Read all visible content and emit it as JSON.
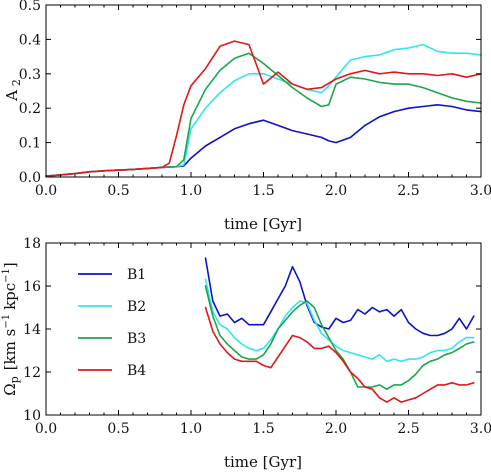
{
  "colors": {
    "B1": "#0a14c8",
    "B2": "#2ee6f0",
    "B3": "#1aa64a",
    "B4": "#e01818"
  },
  "chart_data": [
    {
      "type": "line",
      "xlabel": "time [Gyr]",
      "ylabel": "A",
      "ylabel_sub": "2",
      "xlim": [
        0.0,
        3.0
      ],
      "ylim": [
        0.0,
        0.5
      ],
      "xticks": [
        0.0,
        0.5,
        1.0,
        1.5,
        2.0,
        2.5,
        3.0
      ],
      "xtick_labels": [
        "0.0",
        "0.5",
        "1.0",
        "1.5",
        "2.0",
        "2.5",
        "3.0"
      ],
      "yticks": [
        0.0,
        0.1,
        0.2,
        0.3,
        0.4,
        0.5
      ],
      "ytick_labels": [
        "0.0",
        "0.1",
        "0.2",
        "0.3",
        "0.4",
        "0.5"
      ],
      "grid": false,
      "series": [
        {
          "name": "B1",
          "color_key": "B1",
          "x": [
            0.0,
            0.1,
            0.2,
            0.3,
            0.4,
            0.5,
            0.6,
            0.7,
            0.8,
            0.9,
            0.95,
            1.0,
            1.1,
            1.2,
            1.3,
            1.4,
            1.5,
            1.6,
            1.7,
            1.8,
            1.9,
            1.95,
            2.0,
            2.1,
            2.2,
            2.3,
            2.4,
            2.5,
            2.6,
            2.7,
            2.8,
            2.9,
            3.0
          ],
          "y": [
            0.003,
            0.006,
            0.01,
            0.015,
            0.018,
            0.02,
            0.022,
            0.025,
            0.028,
            0.03,
            0.032,
            0.055,
            0.09,
            0.115,
            0.14,
            0.155,
            0.165,
            0.15,
            0.135,
            0.125,
            0.115,
            0.105,
            0.1,
            0.115,
            0.15,
            0.175,
            0.19,
            0.2,
            0.205,
            0.21,
            0.205,
            0.195,
            0.19
          ]
        },
        {
          "name": "B2",
          "color_key": "B2",
          "x": [
            0.0,
            0.1,
            0.2,
            0.3,
            0.4,
            0.5,
            0.6,
            0.7,
            0.8,
            0.9,
            0.95,
            1.0,
            1.1,
            1.2,
            1.3,
            1.4,
            1.5,
            1.6,
            1.7,
            1.8,
            1.9,
            1.95,
            2.0,
            2.1,
            2.2,
            2.3,
            2.4,
            2.5,
            2.6,
            2.7,
            2.8,
            2.9,
            3.0
          ],
          "y": [
            0.003,
            0.006,
            0.01,
            0.015,
            0.018,
            0.02,
            0.022,
            0.025,
            0.028,
            0.03,
            0.035,
            0.14,
            0.2,
            0.245,
            0.28,
            0.3,
            0.3,
            0.285,
            0.27,
            0.255,
            0.245,
            0.265,
            0.29,
            0.34,
            0.35,
            0.355,
            0.37,
            0.375,
            0.385,
            0.365,
            0.36,
            0.36,
            0.355
          ]
        },
        {
          "name": "B3",
          "color_key": "B3",
          "x": [
            0.0,
            0.1,
            0.2,
            0.3,
            0.4,
            0.5,
            0.6,
            0.7,
            0.8,
            0.9,
            0.95,
            1.0,
            1.1,
            1.2,
            1.3,
            1.4,
            1.5,
            1.6,
            1.7,
            1.8,
            1.9,
            1.95,
            2.0,
            2.1,
            2.2,
            2.3,
            2.4,
            2.5,
            2.6,
            2.7,
            2.8,
            2.9,
            3.0
          ],
          "y": [
            0.003,
            0.006,
            0.01,
            0.015,
            0.018,
            0.02,
            0.022,
            0.025,
            0.028,
            0.03,
            0.05,
            0.17,
            0.255,
            0.31,
            0.345,
            0.36,
            0.33,
            0.295,
            0.26,
            0.23,
            0.205,
            0.21,
            0.27,
            0.29,
            0.285,
            0.275,
            0.27,
            0.27,
            0.26,
            0.245,
            0.23,
            0.22,
            0.215
          ]
        },
        {
          "name": "B4",
          "color_key": "B4",
          "x": [
            0.0,
            0.1,
            0.2,
            0.3,
            0.4,
            0.5,
            0.6,
            0.7,
            0.8,
            0.85,
            0.9,
            0.95,
            1.0,
            1.1,
            1.2,
            1.3,
            1.4,
            1.5,
            1.6,
            1.7,
            1.8,
            1.9,
            2.0,
            2.1,
            2.2,
            2.3,
            2.4,
            2.5,
            2.6,
            2.7,
            2.8,
            2.9,
            3.0
          ],
          "y": [
            0.003,
            0.006,
            0.01,
            0.015,
            0.018,
            0.02,
            0.022,
            0.025,
            0.028,
            0.04,
            0.12,
            0.21,
            0.265,
            0.315,
            0.38,
            0.395,
            0.385,
            0.27,
            0.305,
            0.27,
            0.255,
            0.26,
            0.285,
            0.3,
            0.31,
            0.3,
            0.305,
            0.3,
            0.3,
            0.295,
            0.3,
            0.29,
            0.3
          ]
        }
      ]
    },
    {
      "type": "line",
      "xlabel": "time [Gyr]",
      "ylabel": "Ω",
      "ylabel_sub": "p",
      "ylabel_unit": "[km s",
      "ylabel_sup1": "−1",
      "ylabel_unit2": "kpc",
      "ylabel_sup2": "−1",
      "ylabel_close": "]",
      "xlim": [
        0.0,
        3.0
      ],
      "ylim": [
        10,
        18
      ],
      "xticks": [
        0.0,
        0.5,
        1.0,
        1.5,
        2.0,
        2.5,
        3.0
      ],
      "xtick_labels": [
        "0.0",
        "0.5",
        "1.0",
        "1.5",
        "2.0",
        "2.5",
        "3.0"
      ],
      "yticks": [
        10,
        12,
        14,
        16,
        18
      ],
      "ytick_labels": [
        "10",
        "12",
        "14",
        "16",
        "18"
      ],
      "grid": false,
      "legend": [
        "B1",
        "B2",
        "B3",
        "B4"
      ],
      "legend_placement": "left",
      "series": [
        {
          "name": "B1",
          "color_key": "B1",
          "x": [
            1.1,
            1.15,
            1.2,
            1.25,
            1.3,
            1.35,
            1.4,
            1.45,
            1.5,
            1.55,
            1.6,
            1.65,
            1.7,
            1.75,
            1.8,
            1.85,
            1.9,
            1.95,
            2.0,
            2.05,
            2.1,
            2.15,
            2.2,
            2.25,
            2.3,
            2.35,
            2.4,
            2.45,
            2.5,
            2.55,
            2.6,
            2.65,
            2.7,
            2.75,
            2.8,
            2.85,
            2.9,
            2.95
          ],
          "y": [
            17.3,
            15.3,
            14.6,
            14.7,
            14.3,
            14.5,
            14.2,
            14.2,
            14.2,
            14.8,
            15.4,
            16.0,
            16.9,
            16.2,
            15.1,
            14.3,
            14.1,
            14.0,
            14.5,
            14.3,
            14.4,
            14.9,
            14.7,
            15.0,
            14.8,
            14.9,
            14.6,
            14.9,
            14.3,
            14.0,
            13.8,
            13.7,
            13.7,
            13.8,
            14.0,
            14.5,
            14.0,
            14.6
          ]
        },
        {
          "name": "B2",
          "color_key": "B2",
          "x": [
            1.1,
            1.15,
            1.2,
            1.25,
            1.3,
            1.35,
            1.4,
            1.45,
            1.5,
            1.55,
            1.6,
            1.65,
            1.7,
            1.75,
            1.8,
            1.85,
            1.9,
            1.95,
            2.0,
            2.05,
            2.1,
            2.15,
            2.2,
            2.25,
            2.3,
            2.35,
            2.4,
            2.45,
            2.5,
            2.55,
            2.6,
            2.65,
            2.7,
            2.75,
            2.8,
            2.85,
            2.9,
            2.95
          ],
          "y": [
            16.3,
            14.8,
            14.2,
            14.0,
            13.6,
            13.3,
            13.1,
            13.0,
            13.1,
            13.5,
            14.0,
            14.6,
            15.0,
            15.3,
            15.2,
            14.4,
            13.8,
            13.5,
            13.2,
            13.0,
            12.9,
            12.8,
            12.7,
            12.6,
            12.8,
            12.5,
            12.6,
            12.5,
            12.6,
            12.6,
            12.7,
            12.9,
            13.0,
            13.0,
            13.1,
            13.4,
            13.6,
            13.6
          ]
        },
        {
          "name": "B3",
          "color_key": "B3",
          "x": [
            1.1,
            1.15,
            1.2,
            1.25,
            1.3,
            1.35,
            1.4,
            1.45,
            1.5,
            1.55,
            1.6,
            1.65,
            1.7,
            1.75,
            1.8,
            1.85,
            1.9,
            1.95,
            2.0,
            2.05,
            2.1,
            2.15,
            2.2,
            2.25,
            2.3,
            2.35,
            2.4,
            2.45,
            2.5,
            2.55,
            2.6,
            2.65,
            2.7,
            2.75,
            2.8,
            2.85,
            2.9,
            2.95
          ],
          "y": [
            16.0,
            14.6,
            13.7,
            13.3,
            13.0,
            12.7,
            12.6,
            12.6,
            12.8,
            13.3,
            14.0,
            14.4,
            14.8,
            15.1,
            15.3,
            15.0,
            14.2,
            13.6,
            13.0,
            12.6,
            12.0,
            11.3,
            11.3,
            11.3,
            11.4,
            11.2,
            11.4,
            11.4,
            11.6,
            11.9,
            12.3,
            12.5,
            12.6,
            12.8,
            12.9,
            13.1,
            13.3,
            13.4
          ]
        },
        {
          "name": "B4",
          "color_key": "B4",
          "x": [
            1.1,
            1.15,
            1.2,
            1.25,
            1.3,
            1.35,
            1.4,
            1.45,
            1.5,
            1.55,
            1.6,
            1.65,
            1.7,
            1.75,
            1.8,
            1.85,
            1.9,
            1.95,
            2.0,
            2.05,
            2.1,
            2.15,
            2.2,
            2.25,
            2.3,
            2.35,
            2.4,
            2.45,
            2.5,
            2.55,
            2.6,
            2.65,
            2.7,
            2.75,
            2.8,
            2.85,
            2.9,
            2.95
          ],
          "y": [
            15.0,
            13.9,
            13.3,
            12.9,
            12.6,
            12.5,
            12.5,
            12.5,
            12.3,
            12.2,
            12.7,
            13.2,
            13.7,
            13.6,
            13.4,
            13.1,
            13.1,
            13.2,
            12.9,
            12.5,
            12.0,
            11.7,
            11.3,
            11.2,
            10.8,
            10.6,
            10.8,
            10.6,
            10.7,
            10.8,
            11.0,
            11.2,
            11.4,
            11.4,
            11.5,
            11.4,
            11.4,
            11.5
          ]
        }
      ]
    }
  ]
}
